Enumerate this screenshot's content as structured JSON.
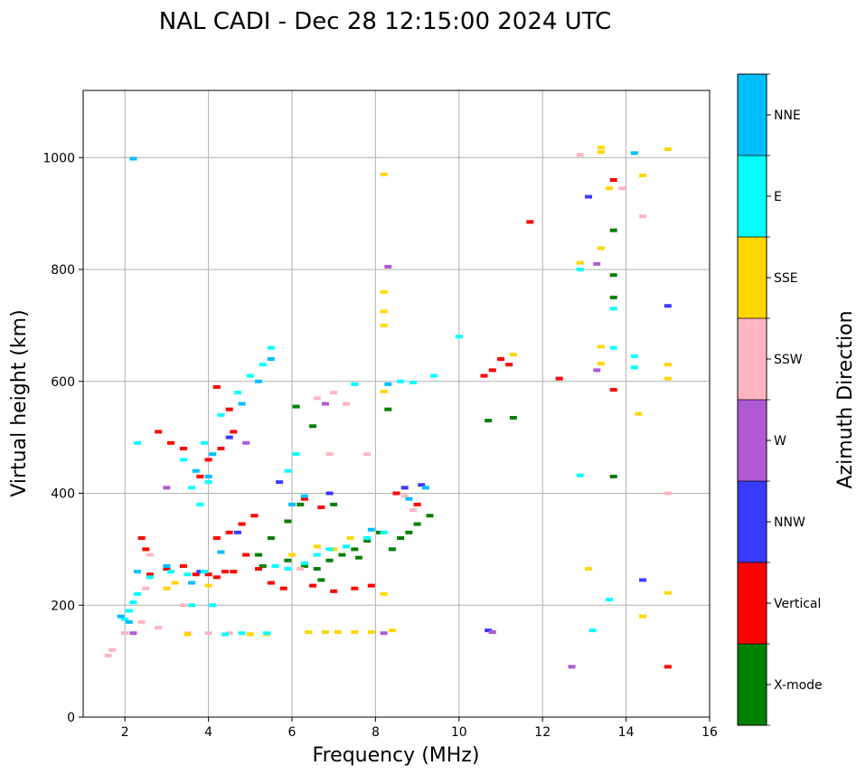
{
  "chart_data": {
    "type": "scatter",
    "title": "NAL CADI - Dec 28 12:15:00 2024 UTC",
    "xlabel": "Frequency (MHz)",
    "ylabel": "Virtual height (km)",
    "xlim": [
      1,
      16
    ],
    "ylim": [
      0,
      1120
    ],
    "xticks": [
      2,
      4,
      6,
      8,
      10,
      12,
      14,
      16
    ],
    "xtick_labels": [
      "2",
      "4",
      "6",
      "8",
      "10",
      "12",
      "14",
      "16"
    ],
    "yticks": [
      0,
      200,
      400,
      600,
      800,
      1000
    ],
    "ytick_labels": [
      "0",
      "200",
      "400",
      "600",
      "800",
      "1000"
    ],
    "grid": true,
    "colorbar": {
      "label": "Azimuth Direction",
      "categories": [
        "X-mode",
        "Vertical",
        "NNW",
        "W",
        "SSW",
        "SSE",
        "E",
        "NNE"
      ],
      "colors": [
        "#008000",
        "#ff0000",
        "#3a3aff",
        "#b05ad6",
        "#ffb6c1",
        "#ffd700",
        "#00ffff",
        "#00bfff"
      ]
    },
    "series": [
      {
        "name": "X-mode",
        "points": [
          [
            6.3,
            270
          ],
          [
            6.6,
            265
          ],
          [
            6.9,
            280
          ],
          [
            7.2,
            290
          ],
          [
            7.5,
            300
          ],
          [
            7.8,
            315
          ],
          [
            8.4,
            300
          ],
          [
            8.6,
            320
          ],
          [
            8.8,
            330
          ],
          [
            9.0,
            345
          ],
          [
            9.3,
            360
          ],
          [
            6.1,
            555
          ],
          [
            6.5,
            520
          ],
          [
            5.2,
            290
          ],
          [
            5.5,
            320
          ],
          [
            5.9,
            350
          ],
          [
            7.0,
            380
          ],
          [
            10.7,
            530
          ],
          [
            11.3,
            535
          ],
          [
            13.7,
            430
          ],
          [
            13.7,
            750
          ],
          [
            13.7,
            790
          ],
          [
            13.7,
            870
          ],
          [
            8.3,
            550
          ],
          [
            6.7,
            245
          ],
          [
            5.9,
            280
          ],
          [
            6.2,
            380
          ],
          [
            7.6,
            285
          ],
          [
            8.1,
            330
          ],
          [
            5.3,
            270
          ]
        ]
      },
      {
        "name": "Vertical",
        "points": [
          [
            4.0,
            255
          ],
          [
            4.2,
            250
          ],
          [
            4.4,
            260
          ],
          [
            4.6,
            260
          ],
          [
            3.7,
            255
          ],
          [
            3.4,
            270
          ],
          [
            3.0,
            265
          ],
          [
            2.6,
            255
          ],
          [
            4.9,
            290
          ],
          [
            5.2,
            265
          ],
          [
            5.5,
            240
          ],
          [
            5.8,
            230
          ],
          [
            6.5,
            235
          ],
          [
            7.0,
            225
          ],
          [
            7.5,
            230
          ],
          [
            7.9,
            235
          ],
          [
            4.2,
            320
          ],
          [
            4.5,
            330
          ],
          [
            4.8,
            345
          ],
          [
            5.1,
            360
          ],
          [
            3.8,
            430
          ],
          [
            4.0,
            460
          ],
          [
            4.3,
            480
          ],
          [
            4.6,
            510
          ],
          [
            3.1,
            490
          ],
          [
            3.4,
            480
          ],
          [
            2.8,
            510
          ],
          [
            4.2,
            590
          ],
          [
            10.8,
            620
          ],
          [
            11.0,
            640
          ],
          [
            11.2,
            630
          ],
          [
            10.6,
            610
          ],
          [
            12.4,
            605
          ],
          [
            11.7,
            885
          ],
          [
            13.7,
            960
          ],
          [
            13.7,
            585
          ],
          [
            15.0,
            90
          ],
          [
            6.3,
            390
          ],
          [
            6.7,
            375
          ],
          [
            8.5,
            400
          ],
          [
            9.0,
            380
          ],
          [
            2.4,
            320
          ],
          [
            2.5,
            300
          ],
          [
            4.5,
            550
          ]
        ]
      },
      {
        "name": "NNW",
        "points": [
          [
            3.8,
            260
          ],
          [
            4.7,
            330
          ],
          [
            5.7,
            420
          ],
          [
            8.7,
            410
          ],
          [
            9.1,
            415
          ],
          [
            13.1,
            930
          ],
          [
            14.4,
            245
          ],
          [
            15.0,
            735
          ],
          [
            10.7,
            155
          ],
          [
            4.5,
            500
          ],
          [
            6.9,
            400
          ]
        ]
      },
      {
        "name": "W",
        "points": [
          [
            8.3,
            805
          ],
          [
            8.2,
            150
          ],
          [
            10.8,
            152
          ],
          [
            12.7,
            90
          ],
          [
            13.3,
            810
          ],
          [
            13.3,
            620
          ],
          [
            6.8,
            560
          ],
          [
            4.9,
            490
          ],
          [
            3.0,
            410
          ],
          [
            2.2,
            150
          ]
        ]
      },
      {
        "name": "SSW",
        "points": [
          [
            1.7,
            120
          ],
          [
            1.6,
            110
          ],
          [
            2.0,
            150
          ],
          [
            2.4,
            170
          ],
          [
            2.8,
            160
          ],
          [
            3.5,
            150
          ],
          [
            4.0,
            150
          ],
          [
            4.5,
            150
          ],
          [
            5.0,
            148
          ],
          [
            2.5,
            230
          ],
          [
            3.0,
            230
          ],
          [
            2.6,
            290
          ],
          [
            3.4,
            200
          ],
          [
            6.6,
            570
          ],
          [
            7.0,
            580
          ],
          [
            7.3,
            560
          ],
          [
            8.7,
            395
          ],
          [
            8.9,
            370
          ],
          [
            13.9,
            945
          ],
          [
            14.4,
            895
          ],
          [
            15.0,
            400
          ],
          [
            12.9,
            1005
          ],
          [
            6.2,
            265
          ],
          [
            7.8,
            470
          ],
          [
            6.9,
            470
          ]
        ]
      },
      {
        "name": "SSE",
        "points": [
          [
            3.2,
            240
          ],
          [
            3.0,
            230
          ],
          [
            3.6,
            240
          ],
          [
            4.0,
            235
          ],
          [
            6.4,
            152
          ],
          [
            6.8,
            152
          ],
          [
            7.1,
            152
          ],
          [
            7.5,
            152
          ],
          [
            7.9,
            152
          ],
          [
            8.4,
            155
          ],
          [
            5.0,
            148
          ],
          [
            5.4,
            148
          ],
          [
            3.5,
            148
          ],
          [
            6.6,
            305
          ],
          [
            7.0,
            300
          ],
          [
            7.4,
            320
          ],
          [
            8.2,
            760
          ],
          [
            8.2,
            725
          ],
          [
            8.2,
            700
          ],
          [
            8.2,
            970
          ],
          [
            8.2,
            220
          ],
          [
            12.9,
            812
          ],
          [
            13.1,
            265
          ],
          [
            13.4,
            838
          ],
          [
            13.4,
            1010
          ],
          [
            13.4,
            1018
          ],
          [
            13.6,
            945
          ],
          [
            14.3,
            542
          ],
          [
            14.4,
            968
          ],
          [
            14.4,
            180
          ],
          [
            15.0,
            222
          ],
          [
            15.0,
            630
          ],
          [
            15.0,
            605
          ],
          [
            15.0,
            1015
          ],
          [
            13.4,
            662
          ],
          [
            13.4,
            632
          ],
          [
            11.3,
            648
          ],
          [
            8.2,
            582
          ],
          [
            6.0,
            290
          ]
        ]
      },
      {
        "name": "E",
        "points": [
          [
            2.0,
            175
          ],
          [
            2.1,
            190
          ],
          [
            2.2,
            205
          ],
          [
            2.3,
            220
          ],
          [
            2.6,
            250
          ],
          [
            3.1,
            260
          ],
          [
            3.5,
            255
          ],
          [
            3.9,
            260
          ],
          [
            3.6,
            200
          ],
          [
            4.1,
            200
          ],
          [
            5.4,
            150
          ],
          [
            4.8,
            150
          ],
          [
            4.4,
            148
          ],
          [
            5.6,
            270
          ],
          [
            5.9,
            265
          ],
          [
            6.3,
            275
          ],
          [
            6.6,
            290
          ],
          [
            6.9,
            300
          ],
          [
            7.3,
            305
          ],
          [
            7.8,
            320
          ],
          [
            8.2,
            330
          ],
          [
            8.6,
            600
          ],
          [
            8.9,
            598
          ],
          [
            9.4,
            610
          ],
          [
            10.0,
            680
          ],
          [
            13.2,
            155
          ],
          [
            12.9,
            432
          ],
          [
            13.6,
            210
          ],
          [
            13.7,
            730
          ],
          [
            14.2,
            645
          ],
          [
            14.2,
            625
          ],
          [
            13.7,
            660
          ],
          [
            3.8,
            380
          ],
          [
            4.0,
            420
          ],
          [
            3.6,
            410
          ],
          [
            3.4,
            460
          ],
          [
            3.9,
            490
          ],
          [
            4.3,
            540
          ],
          [
            4.7,
            580
          ],
          [
            5.0,
            610
          ],
          [
            5.3,
            630
          ],
          [
            5.5,
            660
          ],
          [
            2.3,
            490
          ],
          [
            5.9,
            440
          ],
          [
            6.1,
            470
          ],
          [
            7.5,
            595
          ],
          [
            12.9,
            800
          ]
        ]
      },
      {
        "name": "NNE",
        "points": [
          [
            1.9,
            180
          ],
          [
            2.1,
            170
          ],
          [
            2.3,
            260
          ],
          [
            3.0,
            270
          ],
          [
            3.6,
            240
          ],
          [
            4.0,
            430
          ],
          [
            4.1,
            470
          ],
          [
            3.7,
            440
          ],
          [
            4.8,
            560
          ],
          [
            5.2,
            600
          ],
          [
            5.5,
            640
          ],
          [
            6.0,
            380
          ],
          [
            6.3,
            395
          ],
          [
            8.8,
            390
          ],
          [
            9.2,
            410
          ],
          [
            2.2,
            998
          ],
          [
            14.2,
            1008
          ],
          [
            8.3,
            595
          ],
          [
            7.9,
            335
          ],
          [
            4.3,
            295
          ]
        ]
      }
    ]
  }
}
